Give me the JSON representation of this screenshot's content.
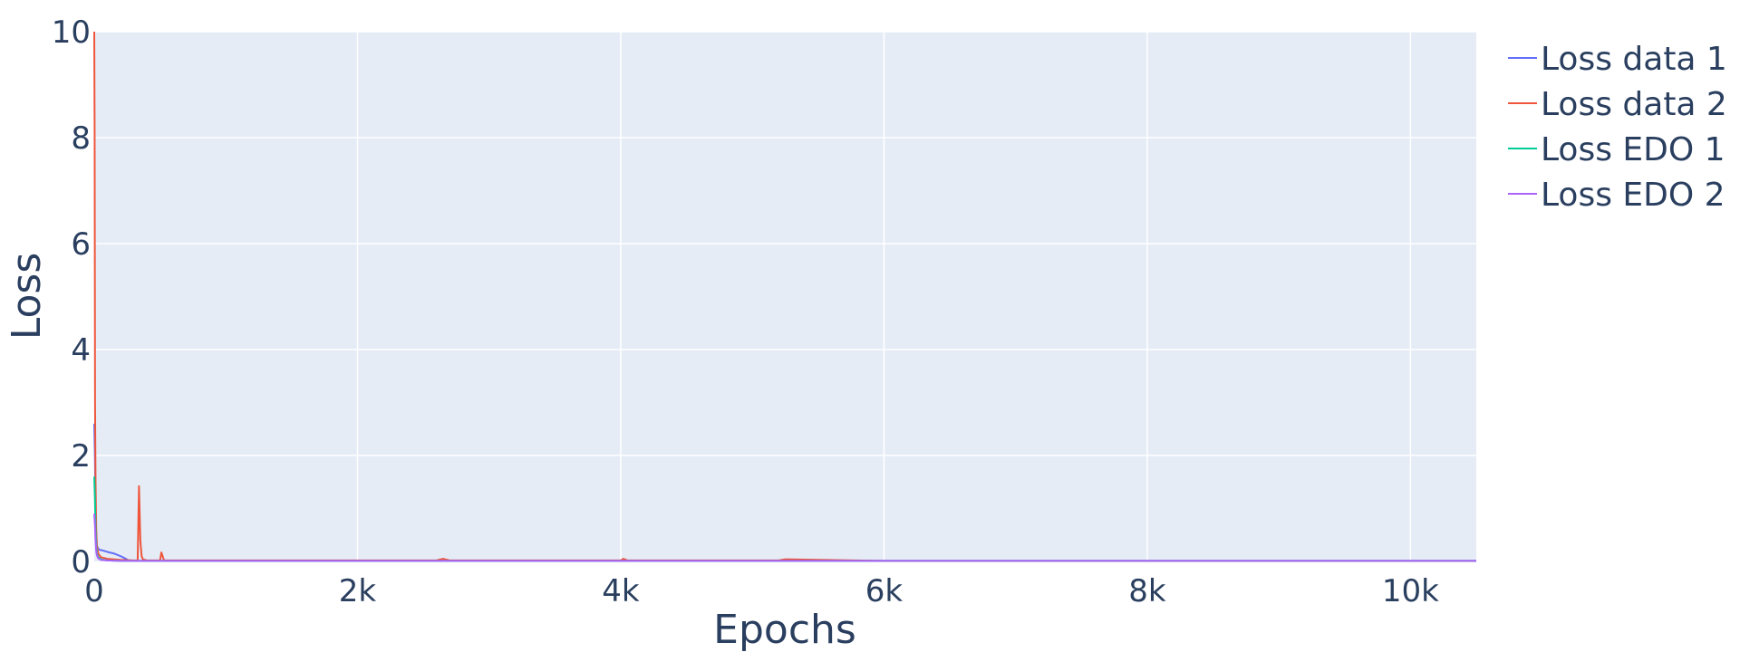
{
  "chart_data": {
    "type": "line",
    "title": "",
    "xlabel": "Epochs",
    "ylabel": "Loss",
    "xlim": [
      0,
      10500
    ],
    "ylim": [
      0,
      10
    ],
    "xticks": [
      {
        "value": 0,
        "label": "0"
      },
      {
        "value": 2000,
        "label": "2k"
      },
      {
        "value": 4000,
        "label": "4k"
      },
      {
        "value": 6000,
        "label": "6k"
      },
      {
        "value": 8000,
        "label": "8k"
      },
      {
        "value": 10000,
        "label": "10k"
      }
    ],
    "yticks": [
      {
        "value": 0,
        "label": "0"
      },
      {
        "value": 2,
        "label": "2"
      },
      {
        "value": 4,
        "label": "4"
      },
      {
        "value": 6,
        "label": "6"
      },
      {
        "value": 8,
        "label": "8"
      },
      {
        "value": 10,
        "label": "10"
      }
    ],
    "grid": true,
    "legend_position": "top-right",
    "plot_background": "#e5ecf6",
    "series": [
      {
        "name": "Loss data 1",
        "color": "#636efa",
        "x": [
          0,
          5,
          10,
          15,
          20,
          30,
          40,
          60,
          100,
          150,
          200,
          240,
          260,
          300,
          500,
          1000,
          2000,
          3000,
          4000,
          5000,
          6000,
          8000,
          10000,
          10500
        ],
        "y": [
          2.6,
          2.0,
          1.0,
          0.5,
          0.3,
          0.24,
          0.22,
          0.21,
          0.18,
          0.15,
          0.1,
          0.05,
          0.02,
          0.01,
          0.01,
          0.01,
          0.01,
          0.01,
          0.01,
          0.01,
          0.01,
          0.01,
          0.01,
          0.01
        ]
      },
      {
        "name": "Loss data 2",
        "color": "#ef553b",
        "x": [
          0,
          3,
          6,
          10,
          15,
          20,
          30,
          50,
          100,
          200,
          300,
          330,
          340,
          350,
          360,
          370,
          400,
          480,
          500,
          510,
          530,
          600,
          1000,
          1500,
          2000,
          2600,
          2650,
          2700,
          3000,
          3500,
          4000,
          4020,
          4050,
          4500,
          5000,
          5200,
          5250,
          6000,
          8000,
          10000,
          10500
        ],
        "y": [
          10.0,
          8.0,
          3.0,
          1.5,
          0.6,
          0.3,
          0.15,
          0.08,
          0.05,
          0.03,
          0.02,
          0.02,
          1.42,
          0.4,
          0.1,
          0.04,
          0.02,
          0.02,
          0.02,
          0.17,
          0.02,
          0.02,
          0.02,
          0.02,
          0.02,
          0.02,
          0.05,
          0.02,
          0.02,
          0.02,
          0.02,
          0.05,
          0.02,
          0.02,
          0.02,
          0.02,
          0.04,
          0.01,
          0.01,
          0.01,
          0.01
        ]
      },
      {
        "name": "Loss EDO 1",
        "color": "#00cc96",
        "x": [
          0,
          5,
          10,
          15,
          20,
          30,
          50,
          100,
          200,
          500,
          1000,
          4000,
          10500
        ],
        "y": [
          1.6,
          1.2,
          0.6,
          0.3,
          0.15,
          0.08,
          0.04,
          0.02,
          0.01,
          0.01,
          0.01,
          0.01,
          0.01
        ]
      },
      {
        "name": "Loss EDO 2",
        "color": "#ab63fa",
        "x": [
          0,
          5,
          10,
          15,
          20,
          30,
          50,
          100,
          200,
          500,
          1000,
          4000,
          10500
        ],
        "y": [
          0.9,
          0.7,
          0.4,
          0.2,
          0.12,
          0.06,
          0.03,
          0.02,
          0.01,
          0.01,
          0.01,
          0.01,
          0.01
        ]
      }
    ]
  }
}
